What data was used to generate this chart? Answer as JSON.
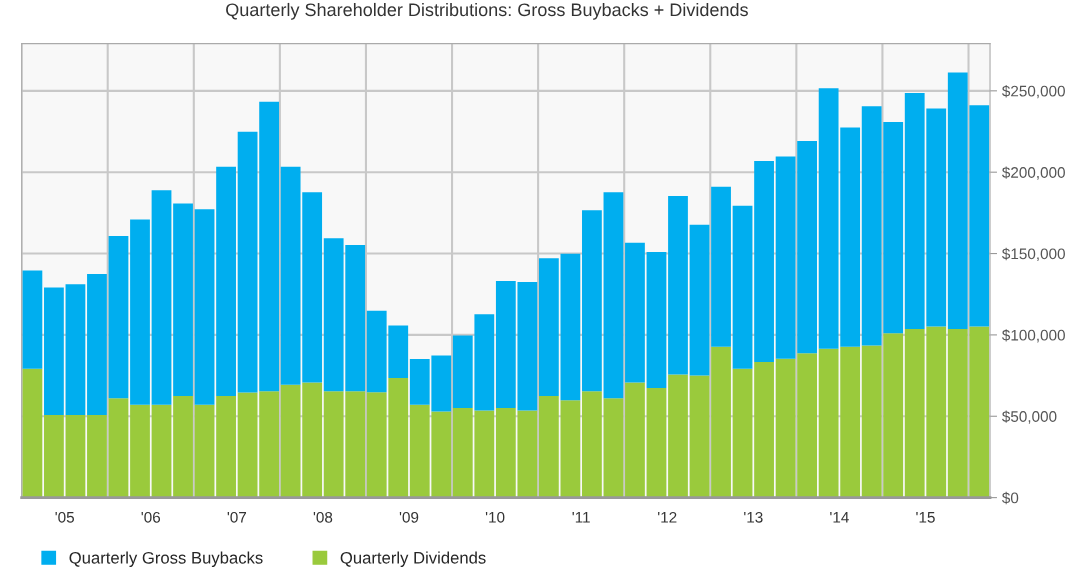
{
  "chart_data": {
    "type": "bar",
    "title": "Quarterly Shareholder Distributions: Gross Buybacks + Dividends",
    "stacked": true,
    "categories": [
      null,
      "'05",
      null,
      null,
      null,
      "'06",
      null,
      null,
      null,
      "'07",
      null,
      null,
      null,
      "'08",
      null,
      null,
      null,
      "'09",
      null,
      null,
      null,
      "'10",
      null,
      null,
      null,
      "'11",
      null,
      null,
      null,
      "'12",
      null,
      null,
      null,
      "'13",
      null,
      null,
      null,
      "'14",
      null,
      null,
      null,
      "'15",
      null,
      null,
      null
    ],
    "series": [
      {
        "name": "Quarterly Dividends",
        "color": "#9aca3c",
        "values": [
          79200,
          50800,
          50800,
          50800,
          61000,
          57100,
          57100,
          62500,
          57100,
          62500,
          64600,
          65400,
          69400,
          70800,
          65400,
          65400,
          64800,
          73500,
          57100,
          52900,
          55000,
          53500,
          55000,
          53500,
          62500,
          59800,
          65400,
          61000,
          70800,
          67300,
          75600,
          75000,
          92700,
          79200,
          83300,
          85400,
          88700,
          91500,
          92700,
          93500,
          101000,
          103700,
          105200,
          103700,
          105200
        ]
      },
      {
        "name": "Quarterly Gross Buybacks",
        "color": "#00aeef",
        "values": [
          60400,
          78400,
          80400,
          86700,
          99800,
          113900,
          131800,
          118300,
          120200,
          140800,
          160200,
          177900,
          133900,
          116900,
          94000,
          89800,
          50000,
          32300,
          28100,
          34400,
          44600,
          59200,
          78100,
          79000,
          84600,
          90000,
          111200,
          126700,
          85900,
          83700,
          109800,
          92700,
          98300,
          100200,
          123600,
          124200,
          130500,
          160100,
          134800,
          147100,
          129800,
          145000,
          133900,
          157500,
          136000
        ]
      }
    ],
    "ylim": [
      0,
      279000
    ],
    "yticks": [
      {
        "value": 0,
        "label": "$0"
      },
      {
        "value": 50000,
        "label": "$50,000"
      },
      {
        "value": 100000,
        "label": "$100,000"
      },
      {
        "value": 150000,
        "label": "$150,000"
      },
      {
        "value": 200000,
        "label": "$200,000"
      },
      {
        "value": 250000,
        "label": "$250,000"
      }
    ],
    "grid": true,
    "legend": "bottom left"
  }
}
